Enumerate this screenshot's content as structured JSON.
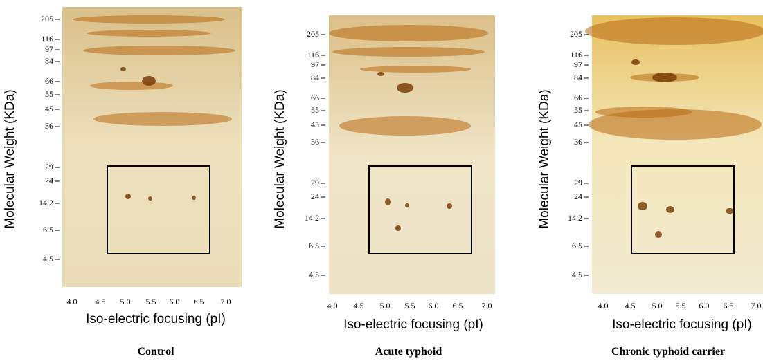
{
  "panels": [
    {
      "caption": "Control",
      "y_label": "Molecular Weight (KDa)",
      "x_label": "Iso-electric focusing (pI)",
      "y_ticks": [
        "205",
        "116",
        "97",
        "84",
        "66",
        "55",
        "45",
        "36",
        "29",
        "24",
        "14.2",
        "6.5",
        "4.5"
      ],
      "x_ticks": [
        "4.0",
        "4.5",
        "5.0",
        "5.5",
        "6.0",
        "6.5",
        "7.0"
      ]
    },
    {
      "caption": "Acute typhoid",
      "y_label": "Molecular Weight (KDa)",
      "x_label": "Iso-electric focusing (pI)",
      "y_ticks": [
        "205",
        "116",
        "97",
        "84",
        "66",
        "55",
        "45",
        "36",
        "29",
        "24",
        "14.2",
        "6.5",
        "4.5"
      ],
      "x_ticks": [
        "4.0",
        "4.5",
        "5.0",
        "5.5",
        "6.0",
        "6.5",
        "7.0"
      ]
    },
    {
      "caption": "Chronic typhoid carrier",
      "y_label": "Molecular Weight (KDa)",
      "x_label": "Iso-electric focusing (pI)",
      "y_ticks": [
        "205",
        "116",
        "97",
        "84",
        "66",
        "55",
        "45",
        "36",
        "29",
        "24",
        "14.2",
        "6.5",
        "4.5"
      ],
      "x_ticks": [
        "4.0",
        "4.5",
        "5.0",
        "5.5",
        "6.0",
        "6.5",
        "7.0"
      ]
    }
  ]
}
